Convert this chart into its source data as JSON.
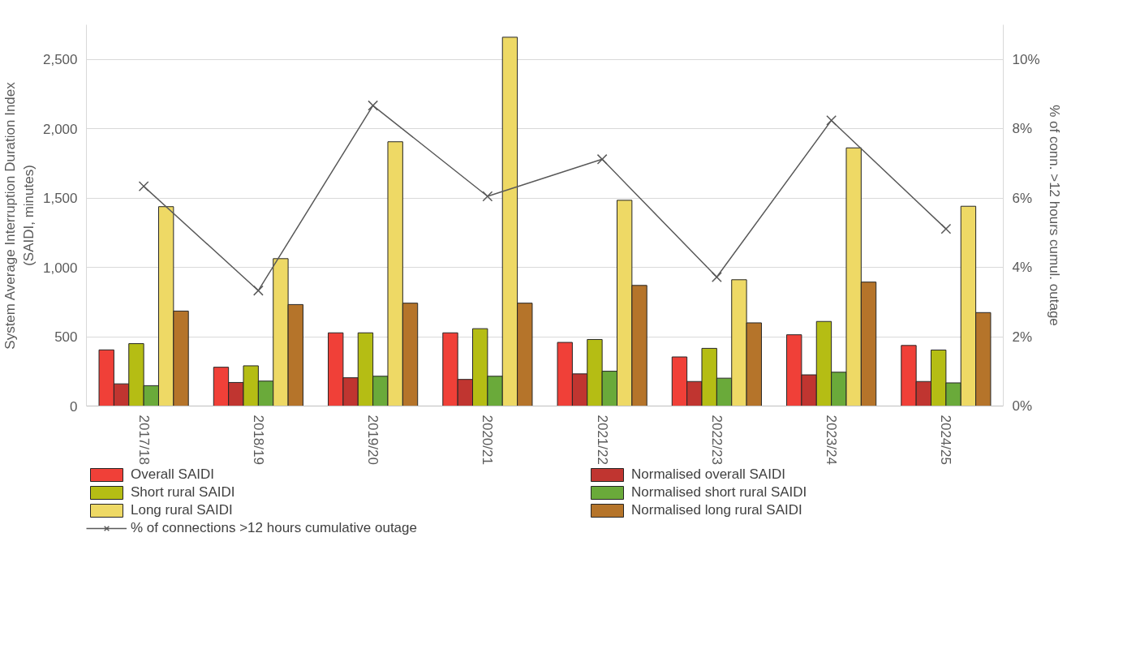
{
  "chart_data": {
    "type": "bar",
    "categories": [
      "2017/18",
      "2018/19",
      "2019/20",
      "2020/21",
      "2021/22",
      "2022/23",
      "2023/24",
      "2024/25"
    ],
    "ylabel": "System Average Interruption Duration Index\n(SAIDI, minutes)",
    "y2label": "% of conn. >12 hours cumul. outage",
    "ylim": [
      0,
      2750
    ],
    "yticks": [
      0,
      {
        "value": 500,
        "label": "500"
      },
      {
        "value": 1000,
        "label": "1,000"
      },
      {
        "value": 1500,
        "label": "1,500"
      },
      {
        "value": 2000,
        "label": "2,000"
      },
      {
        "value": 2500,
        "label": "2,500"
      }
    ],
    "y2lim": [
      0,
      11
    ],
    "y2ticks": [
      {
        "value": 0,
        "label": "0%"
      },
      {
        "value": 2,
        "label": "2%"
      },
      {
        "value": 4,
        "label": "4%"
      },
      {
        "value": 6,
        "label": "6%"
      },
      {
        "value": 8,
        "label": "8%"
      },
      {
        "value": 10,
        "label": "10%"
      }
    ],
    "grid": "y",
    "legend": "bottom",
    "series": [
      {
        "name": "Overall SAIDI",
        "color": "#f04038",
        "values": [
          405,
          280,
          528,
          528,
          459,
          354,
          514,
          437
        ]
      },
      {
        "name": "Normalised overall SAIDI",
        "color": "#c03530",
        "values": [
          160,
          170,
          204,
          192,
          232,
          177,
          225,
          177
        ]
      },
      {
        "name": "Short rural SAIDI",
        "color": "#b5bd14",
        "values": [
          450,
          290,
          528,
          558,
          480,
          416,
          610,
          404
        ]
      },
      {
        "name": "Normalised short rural SAIDI",
        "color": "#6aaa3a",
        "values": [
          147,
          180,
          215,
          215,
          251,
          201,
          244,
          167
        ]
      },
      {
        "name": "Long rural SAIDI",
        "color": "#eed965",
        "values": [
          1438,
          1063,
          1906,
          2660,
          1484,
          911,
          1862,
          1441
        ]
      },
      {
        "name": "Normalised long rural SAIDI",
        "color": "#b5742a",
        "values": [
          685,
          732,
          742,
          742,
          870,
          600,
          894,
          674
        ]
      },
      {
        "name": "% of connections >12 hours cumulative outage",
        "type": "line",
        "axis": "y2",
        "color": "#595959",
        "marker": "cross",
        "line_style": "solid",
        "values": [
          6.34,
          3.33,
          8.67,
          6.05,
          7.12,
          3.72,
          8.24,
          5.11
        ]
      }
    ]
  }
}
